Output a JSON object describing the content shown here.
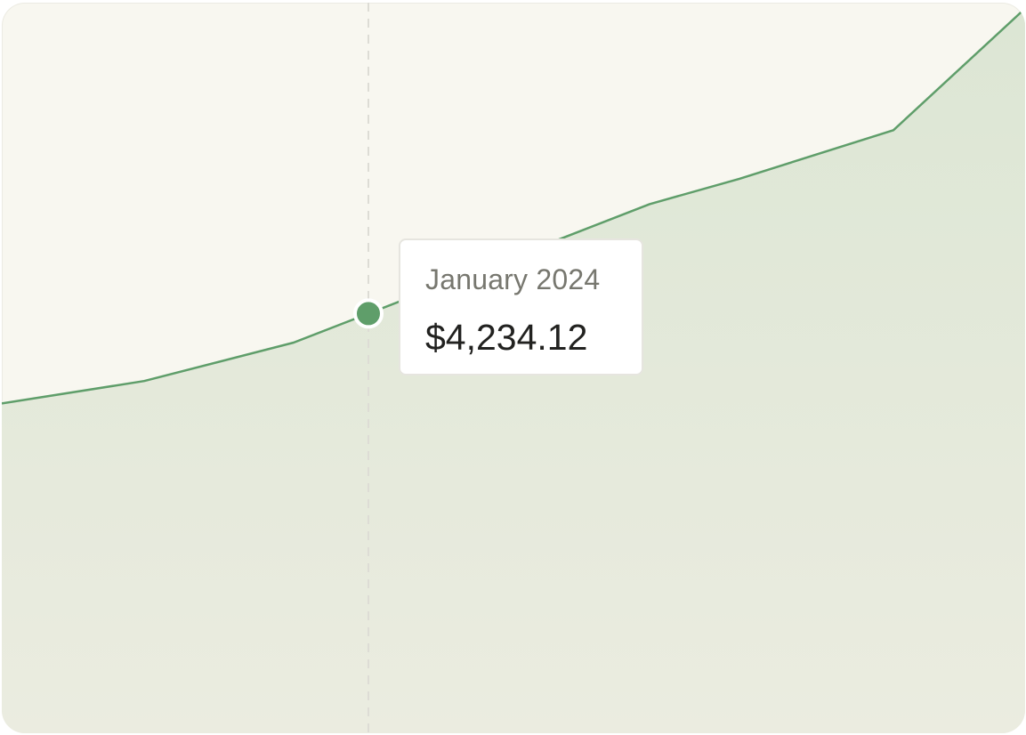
{
  "colors": {
    "background": "#f8f7f0",
    "line": "#5f9e6a",
    "area_top": "#dce6d4",
    "area_bottom": "#ebece0",
    "marker": "#5f9e6a",
    "crosshair": "#dddcd5"
  },
  "chart_data": {
    "type": "area",
    "points": [
      {
        "x": 0,
        "y": 0.455
      },
      {
        "x": 160,
        "y": 0.486
      },
      {
        "x": 328,
        "y": 0.539
      },
      {
        "x": 412,
        "y": 0.579
      },
      {
        "x": 728,
        "y": 0.73
      },
      {
        "x": 829,
        "y": 0.765
      },
      {
        "x": 1002,
        "y": 0.832
      },
      {
        "x": 1150,
        "y": 1.0
      }
    ],
    "ylim": [
      0,
      1.008
    ],
    "xlim": [
      0,
      1150
    ],
    "grid": false,
    "highlight": {
      "index": 3,
      "label": "January 2024",
      "value": "$4,234.12"
    }
  }
}
